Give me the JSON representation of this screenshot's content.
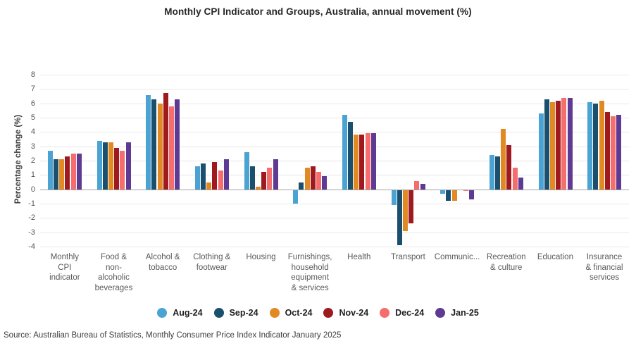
{
  "page": {
    "title": "Monthly CPI Indicator and Groups, Australia, annual movement (%)",
    "source": "Source: Australian Bureau of Statistics, Monthly Consumer Price Index Indicator January 2025"
  },
  "chart_data": {
    "type": "bar",
    "title": "Monthly CPI Indicator and Groups, Australia, annual movement (%)",
    "xlabel": "",
    "ylabel": "Percentage change (%)",
    "ylim": [
      -4,
      8
    ],
    "ytick_step": 1,
    "grid": true,
    "legend_position": "bottom",
    "gridline_color": "#e8e8e8",
    "zero_line_color": "#a5a5a5",
    "categories": [
      "Monthly\nCPI\nindicator",
      "Food &\nnon-\nalcoholic\nbeverages",
      "Alcohol &\ntobacco",
      "Clothing &\nfootwear",
      "Housing",
      "Furnishings,\nhousehold\nequipment\n& services",
      "Health",
      "Transport",
      "Communic...",
      "Recreation\n& culture",
      "Education",
      "Insurance\n& financial\nservices"
    ],
    "series": [
      {
        "name": "Aug-24",
        "color": "#4BA3D3",
        "values": [
          2.7,
          3.4,
          6.6,
          1.6,
          2.6,
          -1.0,
          5.2,
          -1.1,
          -0.3,
          2.4,
          5.3,
          6.1
        ]
      },
      {
        "name": "Sep-24",
        "color": "#1B4F6E",
        "values": [
          2.1,
          3.3,
          6.3,
          1.8,
          1.6,
          0.5,
          4.7,
          -3.9,
          -0.8,
          2.3,
          6.3,
          6.0
        ]
      },
      {
        "name": "Oct-24",
        "color": "#E18A23",
        "values": [
          2.1,
          3.3,
          6.0,
          0.5,
          0.2,
          1.5,
          3.8,
          -2.9,
          -0.8,
          4.2,
          6.1,
          6.2
        ]
      },
      {
        "name": "Nov-24",
        "color": "#9E1A1F",
        "values": [
          2.3,
          2.9,
          6.7,
          1.9,
          1.2,
          1.6,
          3.8,
          -2.4,
          0.0,
          3.1,
          6.2,
          5.4
        ]
      },
      {
        "name": "Dec-24",
        "color": "#F66D6D",
        "values": [
          2.5,
          2.7,
          5.8,
          1.3,
          1.5,
          1.2,
          3.9,
          0.6,
          -0.1,
          1.5,
          6.4,
          5.1
        ]
      },
      {
        "name": "Jan-25",
        "color": "#5E3A92",
        "values": [
          2.5,
          3.3,
          6.3,
          2.1,
          2.1,
          0.9,
          3.9,
          0.4,
          -0.7,
          0.8,
          6.4,
          5.2
        ]
      }
    ]
  }
}
